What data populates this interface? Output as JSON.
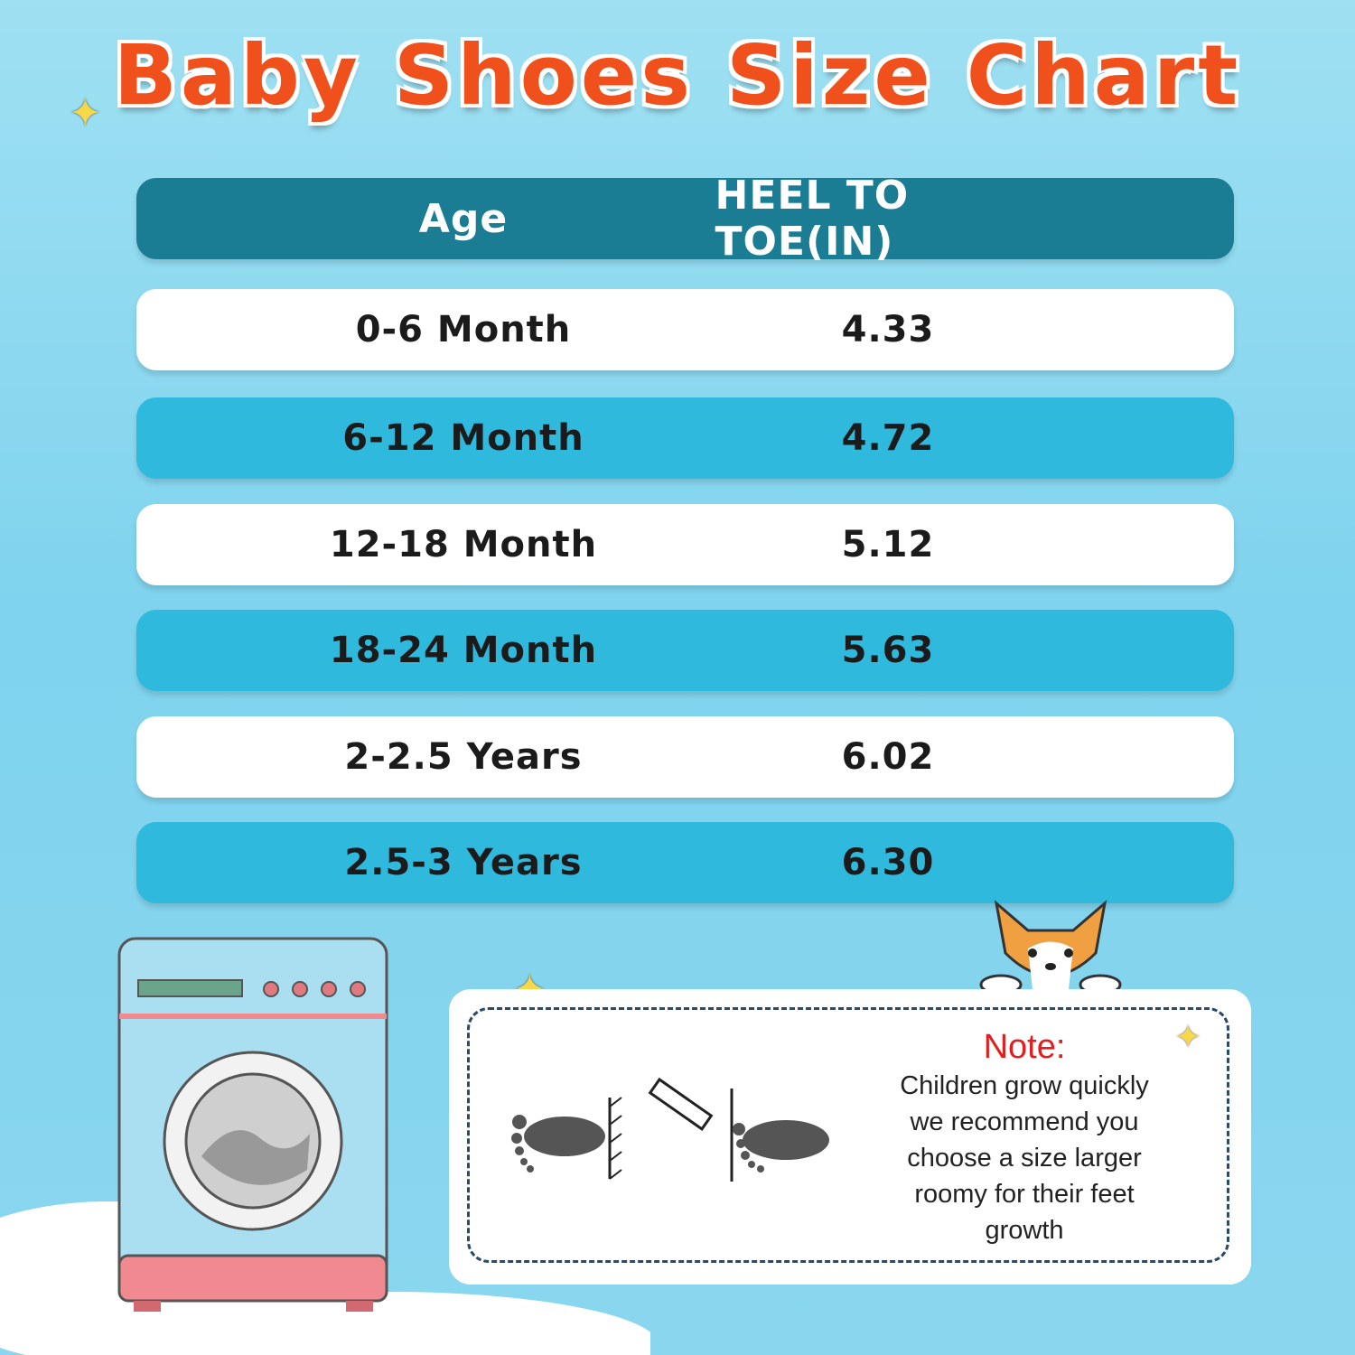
{
  "title": "Baby Shoes Size Chart",
  "table": {
    "headers": [
      "Age",
      "HEEL TO TOE(IN)"
    ],
    "rows": [
      {
        "age": "0-6 Month",
        "heel_to_toe": "4.33"
      },
      {
        "age": "6-12 Month",
        "heel_to_toe": "4.72"
      },
      {
        "age": "12-18 Month",
        "heel_to_toe": "5.12"
      },
      {
        "age": "18-24 Month",
        "heel_to_toe": "5.63"
      },
      {
        "age": "2-2.5 Years",
        "heel_to_toe": "6.02"
      },
      {
        "age": "2.5-3 Years",
        "heel_to_toe": "6.30"
      }
    ]
  },
  "note": {
    "title": "Note:",
    "text": "Children grow quickly we recommend you choose a size larger roomy for their feet growth"
  },
  "colors": {
    "title": "#f0501c",
    "header": "#1a7d94",
    "row_alt": "#2fb9dd",
    "note_title": "#e02020"
  }
}
